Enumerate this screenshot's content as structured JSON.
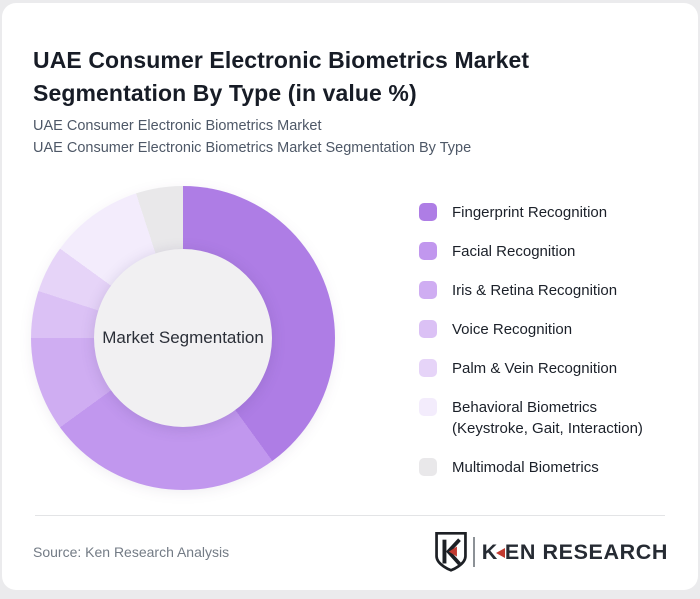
{
  "header": {
    "title": "UAE Consumer Electronic Biometrics Market Segmentation By Type (in value %)",
    "subtitle_line1": "UAE Consumer Electronic Biometrics Market",
    "subtitle_line2": "UAE Consumer Electronic Biometrics Market Segmentation By Type"
  },
  "chart_data": {
    "type": "pie",
    "variant": "donut",
    "title": "UAE Consumer Electronic Biometrics Market Segmentation By Type (in value %)",
    "center_label": "Market Segmentation",
    "start_angle_deg": 0,
    "direction": "clockwise",
    "legend_position": "right",
    "units": "value %",
    "segments": [
      {
        "label": "Fingerprint Recognition",
        "label_lines": [
          "Fingerprint Recognition"
        ],
        "value_pct": 40,
        "color": "#ae7de5"
      },
      {
        "label": "Facial Recognition",
        "label_lines": [
          "Facial Recognition"
        ],
        "value_pct": 25,
        "color": "#c197ee"
      },
      {
        "label": "Iris & Retina Recognition",
        "label_lines": [
          "Iris & Retina Recognition"
        ],
        "value_pct": 10,
        "color": "#cfadf2"
      },
      {
        "label": "Voice Recognition",
        "label_lines": [
          "Voice Recognition"
        ],
        "value_pct": 5,
        "color": "#dbc1f5"
      },
      {
        "label": "Palm & Vein Recognition",
        "label_lines": [
          "Palm & Vein Recognition"
        ],
        "value_pct": 5,
        "color": "#e6d4f8"
      },
      {
        "label": "Behavioral Biometrics (Keystroke, Gait, Interaction)",
        "label_lines": [
          "Behavioral Biometrics",
          "(Keystroke, Gait, Interaction)"
        ],
        "value_pct": 10,
        "color": "#f3ecfc"
      },
      {
        "label": "Multimodal Biometrics",
        "label_lines": [
          "Multimodal Biometrics"
        ],
        "value_pct": 5,
        "color": "#e9e8ea"
      }
    ],
    "hole_color": "#f1f0f2"
  },
  "footer": {
    "source": "Source: Ken Research Analysis",
    "logo": {
      "k": "K",
      "rest": "EN RESEARCH",
      "accent_color": "#c23a30"
    }
  }
}
